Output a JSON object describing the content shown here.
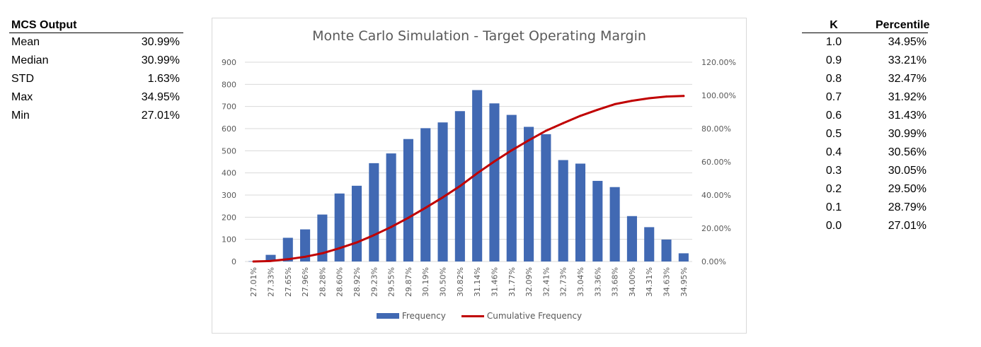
{
  "summary": {
    "title": "MCS Output",
    "rows": [
      {
        "label": "Mean",
        "value": "30.99%"
      },
      {
        "label": "Median",
        "value": "30.99%"
      },
      {
        "label": "STD",
        "value": "1.63%"
      },
      {
        "label": "Max",
        "value": "34.95%"
      },
      {
        "label": "Min",
        "value": "27.01%"
      }
    ]
  },
  "percentiles": {
    "headers": [
      "K",
      "Percentile"
    ],
    "rows": [
      [
        "1.0",
        "34.95%"
      ],
      [
        "0.9",
        "33.21%"
      ],
      [
        "0.8",
        "32.47%"
      ],
      [
        "0.7",
        "31.92%"
      ],
      [
        "0.6",
        "31.43%"
      ],
      [
        "0.5",
        "30.99%"
      ],
      [
        "0.4",
        "30.56%"
      ],
      [
        "0.3",
        "30.05%"
      ],
      [
        "0.2",
        "29.50%"
      ],
      [
        "0.1",
        "28.79%"
      ],
      [
        "0.0",
        "27.01%"
      ]
    ]
  },
  "chart_data": {
    "type": "bar",
    "title": "Monte Carlo Simulation - Target Operating Margin",
    "categories": [
      "27.01%",
      "27.33%",
      "27.65%",
      "27.96%",
      "28.28%",
      "28.60%",
      "28.92%",
      "29.23%",
      "29.55%",
      "29.87%",
      "30.19%",
      "30.50%",
      "30.82%",
      "31.14%",
      "31.46%",
      "31.77%",
      "32.09%",
      "32.41%",
      "32.73%",
      "33.04%",
      "33.36%",
      "33.68%",
      "34.00%",
      "34.31%",
      "34.63%",
      "34.95%"
    ],
    "series": [
      {
        "name": "Frequency",
        "type": "bar",
        "axis": "left",
        "values": [
          1,
          30,
          107,
          145,
          212,
          307,
          342,
          444,
          488,
          553,
          602,
          628,
          679,
          774,
          714,
          662,
          608,
          575,
          458,
          442,
          364,
          336,
          205,
          155,
          99,
          37
        ]
      },
      {
        "name": "Cumulative Frequency",
        "type": "line",
        "axis": "right",
        "values": [
          0.0001,
          0.0031,
          0.0138,
          0.0283,
          0.0495,
          0.0802,
          0.1144,
          0.1588,
          0.2076,
          0.2629,
          0.3231,
          0.3859,
          0.4538,
          0.5312,
          0.6026,
          0.6688,
          0.7296,
          0.7871,
          0.8329,
          0.8771,
          0.9135,
          0.9471,
          0.9676,
          0.9831,
          0.993,
          0.9967
        ]
      }
    ],
    "ylim": [
      0,
      900
    ],
    "yticks": [
      "0",
      "100",
      "200",
      "300",
      "400",
      "500",
      "600",
      "700",
      "800",
      "900"
    ],
    "y2lim": [
      0,
      1.2
    ],
    "y2ticks": [
      "0.00%",
      "20.00%",
      "40.00%",
      "60.00%",
      "80.00%",
      "100.00%",
      "120.00%"
    ],
    "colors": {
      "bar": "#4169b3",
      "line": "#c00000",
      "grid": "#d9d9d9"
    },
    "grid": true,
    "legend": "bottom"
  }
}
